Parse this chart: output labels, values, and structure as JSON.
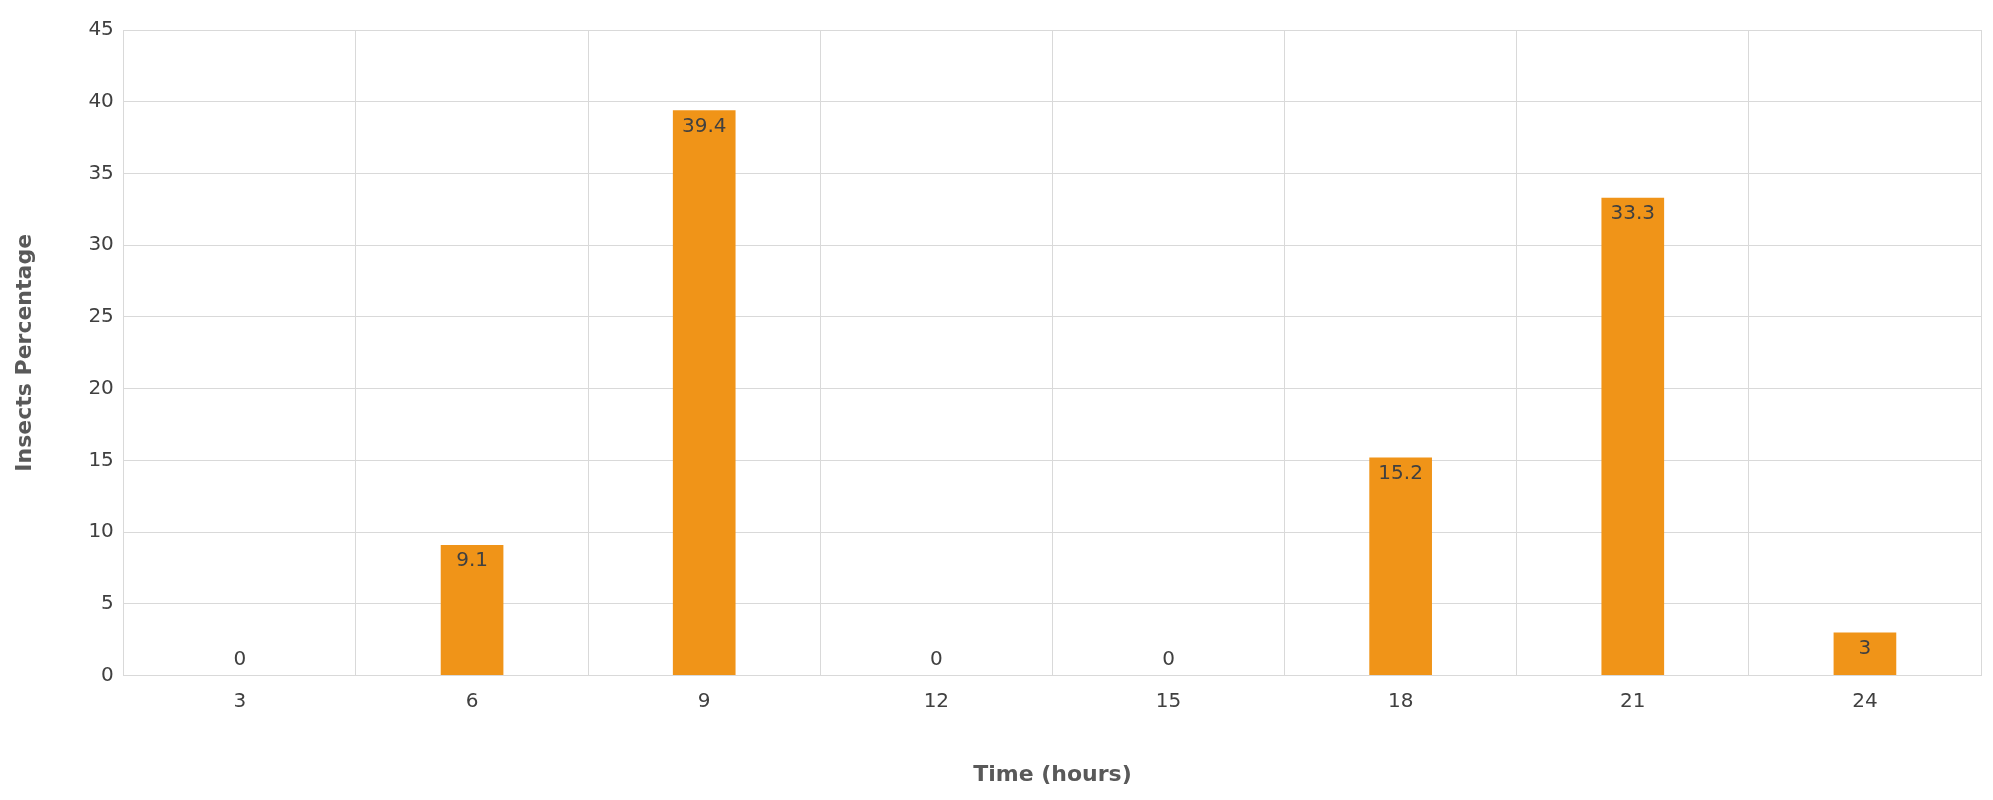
{
  "chart_data": {
    "type": "bar",
    "xlabel": "Time (hours)",
    "ylabel": "Insects Percentage",
    "categories": [
      "3",
      "6",
      "9",
      "12",
      "15",
      "18",
      "21",
      "24"
    ],
    "values": [
      0,
      9.1,
      39.4,
      0,
      0,
      15.2,
      33.3,
      3
    ],
    "color": "#f09418",
    "ylim": [
      0,
      45
    ],
    "yticks": [
      0,
      5,
      10,
      15,
      20,
      25,
      30,
      35,
      40,
      45
    ],
    "grid": true,
    "data_labels": true
  }
}
